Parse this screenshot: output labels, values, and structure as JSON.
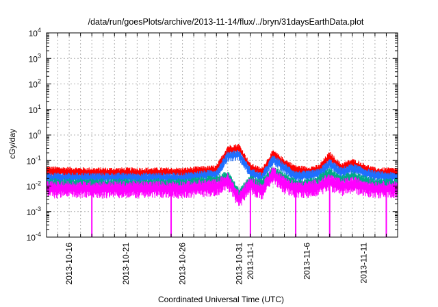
{
  "chart_data": {
    "type": "line",
    "title": "/data/run/goesPlots/archive/2013-11-14/flux/../bryn/31daysEarthData.plot",
    "xlabel": "Coordinated Universal Time (UTC)",
    "ylabel": "cGy/day",
    "yscale": "log",
    "ylim": [
      0.0001,
      10000
    ],
    "xlim": [
      "2013-10-14",
      "2013-11-14"
    ],
    "grid": true,
    "legend": "none",
    "y_ticks": [
      {
        "value": 0.0001,
        "base": "10",
        "exp": "-4"
      },
      {
        "value": 0.001,
        "base": "10",
        "exp": "-3"
      },
      {
        "value": 0.01,
        "base": "10",
        "exp": "-2"
      },
      {
        "value": 0.1,
        "base": "10",
        "exp": "-1"
      },
      {
        "value": 1,
        "base": "10",
        "exp": "0"
      },
      {
        "value": 10,
        "base": "10",
        "exp": "1"
      },
      {
        "value": 100,
        "base": "10",
        "exp": "2"
      },
      {
        "value": 1000,
        "base": "10",
        "exp": "3"
      },
      {
        "value": 10000,
        "base": "10",
        "exp": "4"
      }
    ],
    "x_ticks": [
      {
        "date": "2013-10-16",
        "label": "2013-10-16"
      },
      {
        "date": "2013-10-21",
        "label": "2013-10-21"
      },
      {
        "date": "2013-10-26",
        "label": "2013-10-26"
      },
      {
        "date": "2013-10-31",
        "label": "2013-10-31"
      },
      {
        "date": "2013-11-01",
        "label": "2013-11-1"
      },
      {
        "date": "2013-11-06",
        "label": "2013-11-6"
      },
      {
        "date": "2013-11-11",
        "label": "2013-11-11"
      }
    ],
    "series": [
      {
        "color": "#ff0000",
        "x": [
          "2013-10-14",
          "2013-10-18",
          "2013-10-22",
          "2013-10-26",
          "2013-10-29",
          "2013-10-30",
          "2013-10-31",
          "2013-11-01",
          "2013-11-02",
          "2013-11-03",
          "2013-11-04",
          "2013-11-05",
          "2013-11-06",
          "2013-11-07",
          "2013-11-08",
          "2013-11-09",
          "2013-11-10",
          "2013-11-11",
          "2013-11-12",
          "2013-11-14"
        ],
        "values": [
          0.045,
          0.04,
          0.04,
          0.04,
          0.05,
          0.3,
          0.35,
          0.06,
          0.04,
          0.2,
          0.09,
          0.05,
          0.045,
          0.05,
          0.17,
          0.06,
          0.09,
          0.06,
          0.04,
          0.04
        ]
      },
      {
        "color": "#1e6fff",
        "x": [
          "2013-10-14",
          "2013-10-18",
          "2013-10-22",
          "2013-10-26",
          "2013-10-29",
          "2013-10-30",
          "2013-10-31",
          "2013-11-01",
          "2013-11-02",
          "2013-11-03",
          "2013-11-04",
          "2013-11-05",
          "2013-11-06",
          "2013-11-07",
          "2013-11-08",
          "2013-11-09",
          "2013-11-10",
          "2013-11-11",
          "2013-11-12",
          "2013-11-14"
        ],
        "values": [
          0.025,
          0.025,
          0.025,
          0.025,
          0.035,
          0.18,
          0.2,
          0.04,
          0.025,
          0.13,
          0.06,
          0.03,
          0.03,
          0.035,
          0.09,
          0.04,
          0.06,
          0.04,
          0.03,
          0.025
        ]
      },
      {
        "color": "#00aa88",
        "x": [
          "2013-10-14",
          "2013-10-18",
          "2013-10-22",
          "2013-10-26",
          "2013-10-29",
          "2013-10-30",
          "2013-10-31",
          "2013-11-01",
          "2013-11-02",
          "2013-11-03",
          "2013-11-04",
          "2013-11-05",
          "2013-11-06",
          "2013-11-07",
          "2013-11-08",
          "2013-11-09",
          "2013-11-10",
          "2013-11-11",
          "2013-11-12",
          "2013-11-14"
        ],
        "values": [
          0.015,
          0.015,
          0.015,
          0.015,
          0.02,
          0.03,
          0.006,
          0.02,
          0.015,
          0.05,
          0.025,
          0.015,
          0.015,
          0.02,
          0.04,
          0.02,
          0.03,
          0.02,
          0.015,
          0.015
        ]
      },
      {
        "color": "#ff00ff",
        "x": [
          "2013-10-14",
          "2013-10-18",
          "2013-10-22",
          "2013-10-26",
          "2013-10-29",
          "2013-10-30",
          "2013-10-31",
          "2013-11-01",
          "2013-11-02",
          "2013-11-03",
          "2013-11-04",
          "2013-11-05",
          "2013-11-06",
          "2013-11-07",
          "2013-11-08",
          "2013-11-09",
          "2013-11-10",
          "2013-11-11",
          "2013-11-12",
          "2013-11-14"
        ],
        "values": [
          0.01,
          0.01,
          0.01,
          0.01,
          0.012,
          0.02,
          0.004,
          0.015,
          0.008,
          0.04,
          0.015,
          0.01,
          0.01,
          0.012,
          0.02,
          0.012,
          0.015,
          0.012,
          0.01,
          0.01
        ],
        "dropouts": [
          "2013-10-18",
          "2013-10-25",
          "2013-11-01",
          "2013-11-05",
          "2013-11-08",
          "2013-11-13"
        ]
      }
    ]
  }
}
